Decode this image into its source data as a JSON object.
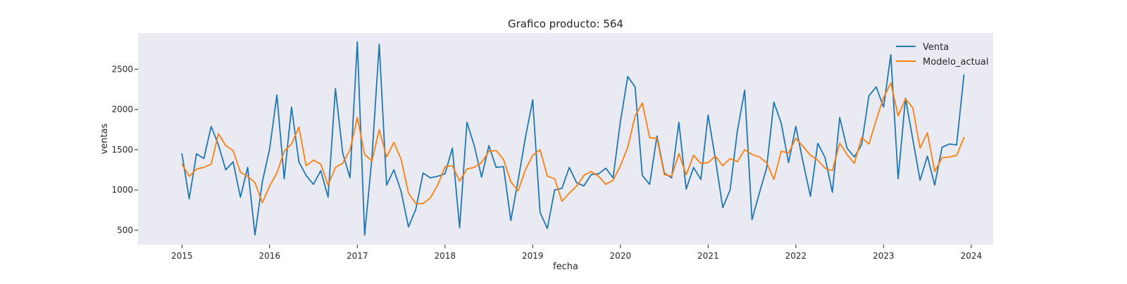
{
  "chart_data": {
    "type": "line",
    "title": "Grafico producto: 564",
    "xlabel": "fecha",
    "ylabel": "ventas",
    "x_ticks": [
      "2015",
      "2016",
      "2017",
      "2018",
      "2019",
      "2020",
      "2021",
      "2022",
      "2023",
      "2024"
    ],
    "y_ticks": [
      500,
      1000,
      1500,
      2000,
      2500
    ],
    "xlim": [
      "2014-07",
      "2024-04"
    ],
    "ylim": [
      320,
      2950
    ],
    "grid": false,
    "background": "#eaeaf2",
    "legend_position": "top-right",
    "x": [
      "2015-01",
      "2015-02",
      "2015-03",
      "2015-04",
      "2015-05",
      "2015-06",
      "2015-07",
      "2015-08",
      "2015-09",
      "2015-10",
      "2015-11",
      "2015-12",
      "2016-01",
      "2016-02",
      "2016-03",
      "2016-04",
      "2016-05",
      "2016-06",
      "2016-07",
      "2016-08",
      "2016-09",
      "2016-10",
      "2016-11",
      "2016-12",
      "2017-01",
      "2017-02",
      "2017-03",
      "2017-04",
      "2017-05",
      "2017-06",
      "2017-07",
      "2017-08",
      "2017-09",
      "2017-10",
      "2017-11",
      "2017-12",
      "2018-01",
      "2018-02",
      "2018-03",
      "2018-04",
      "2018-05",
      "2018-06",
      "2018-07",
      "2018-08",
      "2018-09",
      "2018-10",
      "2018-11",
      "2018-12",
      "2019-01",
      "2019-02",
      "2019-03",
      "2019-04",
      "2019-05",
      "2019-06",
      "2019-07",
      "2019-08",
      "2019-09",
      "2019-10",
      "2019-11",
      "2019-12",
      "2020-01",
      "2020-02",
      "2020-03",
      "2020-04",
      "2020-05",
      "2020-06",
      "2020-07",
      "2020-08",
      "2020-09",
      "2020-10",
      "2020-11",
      "2020-12",
      "2021-01",
      "2021-02",
      "2021-03",
      "2021-04",
      "2021-05",
      "2021-06",
      "2021-07",
      "2021-08",
      "2021-09",
      "2021-10",
      "2021-11",
      "2021-12",
      "2022-01",
      "2022-02",
      "2022-03",
      "2022-04",
      "2022-05",
      "2022-06",
      "2022-07",
      "2022-08",
      "2022-09",
      "2022-10",
      "2022-11",
      "2022-12",
      "2023-01",
      "2023-02",
      "2023-03",
      "2023-04",
      "2023-05",
      "2023-06",
      "2023-07",
      "2023-08",
      "2023-09",
      "2023-10",
      "2023-11",
      "2023-12"
    ],
    "series": [
      {
        "name": "Venta",
        "color": "#1f77b4",
        "values": [
          1450,
          890,
          1450,
          1390,
          1790,
          1560,
          1250,
          1350,
          910,
          1280,
          440,
          1100,
          1510,
          2180,
          1140,
          2030,
          1350,
          1180,
          1070,
          1240,
          910,
          2260,
          1460,
          1150,
          2840,
          440,
          1400,
          2810,
          1060,
          1250,
          980,
          540,
          760,
          1210,
          1150,
          1170,
          1200,
          1520,
          530,
          1840,
          1550,
          1160,
          1550,
          1280,
          1290,
          620,
          1120,
          1650,
          2120,
          720,
          520,
          1000,
          1020,
          1280,
          1090,
          1050,
          1190,
          1200,
          1270,
          1150,
          1850,
          2410,
          2280,
          1180,
          1070,
          1670,
          1210,
          1150,
          1840,
          1010,
          1280,
          1130,
          1930,
          1380,
          780,
          1000,
          1730,
          2240,
          630,
          960,
          1270,
          2090,
          1830,
          1340,
          1790,
          1340,
          920,
          1580,
          1400,
          970,
          1900,
          1520,
          1410,
          1560,
          2170,
          2280,
          2030,
          2680,
          1140,
          2140,
          1630,
          1120,
          1420,
          1060,
          1530,
          1570,
          1560,
          2430
        ]
      },
      {
        "name": "Modelo_actual",
        "color": "#ff7f0e",
        "values": [
          1320,
          1170,
          1260,
          1280,
          1320,
          1700,
          1550,
          1490,
          1220,
          1170,
          1090,
          840,
          1050,
          1210,
          1480,
          1570,
          1780,
          1300,
          1370,
          1320,
          1060,
          1280,
          1330,
          1500,
          1900,
          1440,
          1360,
          1750,
          1410,
          1590,
          1380,
          960,
          830,
          830,
          900,
          1060,
          1290,
          1300,
          1110,
          1260,
          1280,
          1340,
          1480,
          1490,
          1380,
          1100,
          990,
          1250,
          1430,
          1500,
          1170,
          1140,
          860,
          960,
          1050,
          1180,
          1230,
          1170,
          1070,
          1120,
          1300,
          1530,
          1920,
          2080,
          1650,
          1640,
          1190,
          1170,
          1450,
          1190,
          1430,
          1330,
          1340,
          1420,
          1300,
          1390,
          1350,
          1500,
          1440,
          1410,
          1340,
          1130,
          1480,
          1460,
          1640,
          1540,
          1430,
          1370,
          1270,
          1240,
          1580,
          1440,
          1330,
          1650,
          1570,
          1870,
          2150,
          2330,
          1920,
          2130,
          2020,
          1520,
          1710,
          1230,
          1400,
          1410,
          1430,
          1650
        ]
      }
    ]
  }
}
